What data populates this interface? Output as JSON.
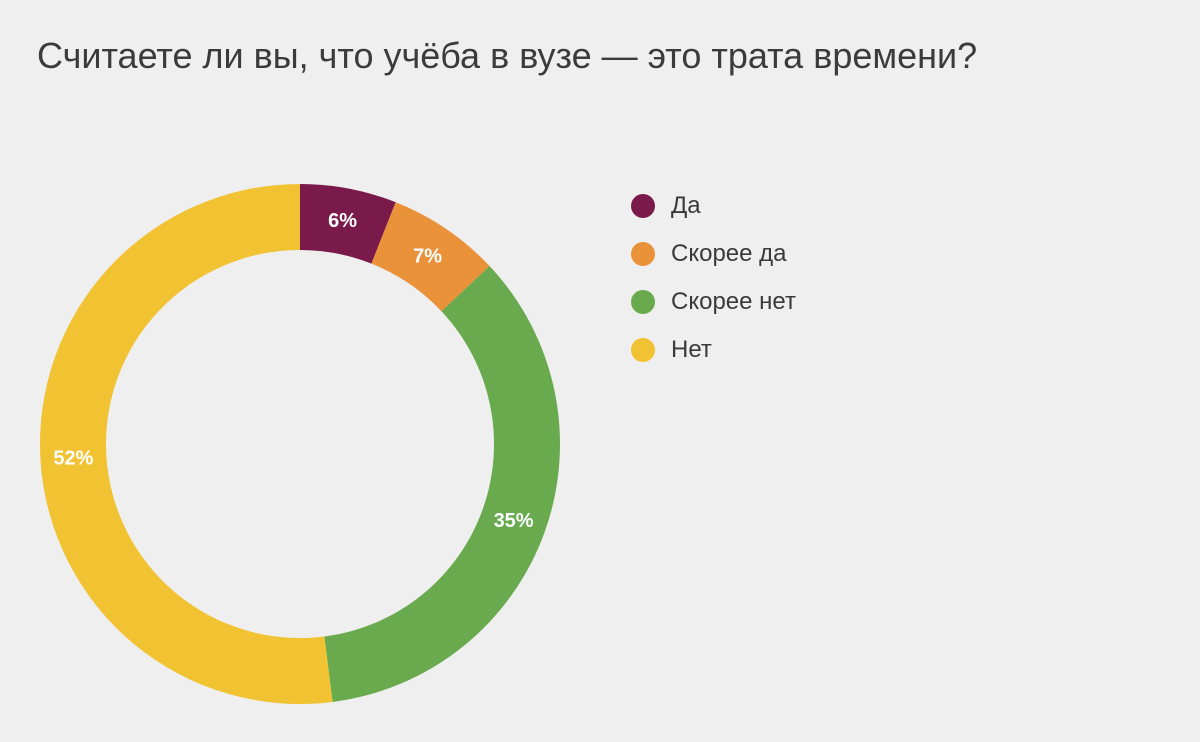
{
  "chart_data": {
    "type": "pie",
    "title": "Считаете ли вы, что учёба в вузе — это трата времени?",
    "categories": [
      "Да",
      "Скорее да",
      "Скорее нет",
      "Нет"
    ],
    "values": [
      6,
      7,
      35,
      52
    ],
    "value_labels": [
      "6%",
      "7%",
      "35%",
      "52%"
    ],
    "unit": "%",
    "colors": [
      "#7a1a4a",
      "#e9923a",
      "#6aaa4e",
      "#f1c232"
    ],
    "donut": true,
    "legend_position": "right"
  }
}
